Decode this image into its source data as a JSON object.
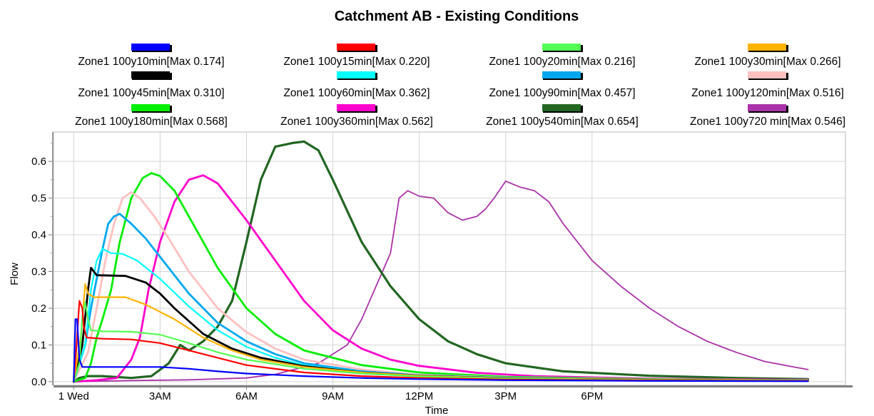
{
  "chart_data": {
    "type": "line",
    "title": "Catchment AB - Existing Conditions",
    "xlabel": "Time",
    "ylabel": "Flow",
    "xlim": [
      -0.7,
      26.8
    ],
    "ylim": [
      -0.01,
      0.68
    ],
    "grid": true,
    "legend_position": "top",
    "x_unit": "hours after 1 Wed 00:00",
    "x_ticks": [
      {
        "value": 0,
        "label": "1 Wed"
      },
      {
        "value": 3,
        "label": "3AM"
      },
      {
        "value": 6,
        "label": "6AM"
      },
      {
        "value": 9,
        "label": "9AM"
      },
      {
        "value": 12,
        "label": "12PM"
      },
      {
        "value": 15,
        "label": "3PM"
      },
      {
        "value": 18,
        "label": "6PM"
      }
    ],
    "y_ticks": [
      {
        "value": 0.0,
        "label": "0.0"
      },
      {
        "value": 0.1,
        "label": "0.1"
      },
      {
        "value": 0.2,
        "label": "0.2"
      },
      {
        "value": 0.3,
        "label": "0.3"
      },
      {
        "value": 0.4,
        "label": "0.4"
      },
      {
        "value": 0.5,
        "label": "0.5"
      },
      {
        "value": 0.6,
        "label": "0.6"
      }
    ],
    "series": [
      {
        "name": "Zone1 100y10min[Max 0.174]",
        "color": "#0000ff",
        "width": 2.2,
        "points": [
          [
            0,
            0
          ],
          [
            0.06,
            0.17
          ],
          [
            0.12,
            0.17
          ],
          [
            0.2,
            0.06
          ],
          [
            0.3,
            0.04
          ],
          [
            0.6,
            0.04
          ],
          [
            1,
            0.04
          ],
          [
            3,
            0.04
          ],
          [
            4,
            0.035
          ],
          [
            5,
            0.028
          ],
          [
            6,
            0.022
          ],
          [
            8,
            0.015
          ],
          [
            10,
            0.01
          ],
          [
            12,
            0.007
          ],
          [
            15,
            0.004
          ],
          [
            18,
            0.003
          ],
          [
            20,
            0.002
          ],
          [
            25.5,
            0.001
          ]
        ]
      },
      {
        "name": "Zone1 100y15min[Max 0.220]",
        "color": "#ff0000",
        "width": 2.2,
        "points": [
          [
            0,
            0
          ],
          [
            0.1,
            0.1
          ],
          [
            0.2,
            0.22
          ],
          [
            0.3,
            0.2
          ],
          [
            0.35,
            0.15
          ],
          [
            0.45,
            0.12
          ],
          [
            1,
            0.117
          ],
          [
            2,
            0.115
          ],
          [
            3,
            0.105
          ],
          [
            4,
            0.085
          ],
          [
            5,
            0.065
          ],
          [
            6,
            0.045
          ],
          [
            8,
            0.025
          ],
          [
            10,
            0.015
          ],
          [
            12,
            0.01
          ],
          [
            15,
            0.006
          ],
          [
            20,
            0.003
          ],
          [
            25.5,
            0.002
          ]
        ]
      },
      {
        "name": "Zone1 100y20min[Max 0.216]",
        "color": "#55ff55",
        "width": 2.2,
        "points": [
          [
            0,
            0
          ],
          [
            0.2,
            0.05
          ],
          [
            0.3,
            0.18
          ],
          [
            0.4,
            0.216
          ],
          [
            0.5,
            0.17
          ],
          [
            0.6,
            0.14
          ],
          [
            1,
            0.137
          ],
          [
            2,
            0.136
          ],
          [
            3,
            0.128
          ],
          [
            4,
            0.105
          ],
          [
            5,
            0.08
          ],
          [
            6,
            0.06
          ],
          [
            8,
            0.035
          ],
          [
            10,
            0.022
          ],
          [
            12,
            0.014
          ],
          [
            15,
            0.008
          ],
          [
            20,
            0.004
          ],
          [
            25.5,
            0.003
          ]
        ]
      },
      {
        "name": "Zone1 100y30min[Max 0.266]",
        "color": "#ffb300",
        "width": 2.2,
        "points": [
          [
            0,
            0
          ],
          [
            0.25,
            0.12
          ],
          [
            0.4,
            0.266
          ],
          [
            0.5,
            0.24
          ],
          [
            0.7,
            0.23
          ],
          [
            1,
            0.23
          ],
          [
            1.8,
            0.23
          ],
          [
            2.5,
            0.21
          ],
          [
            3.5,
            0.17
          ],
          [
            4.5,
            0.12
          ],
          [
            5.5,
            0.085
          ],
          [
            6.5,
            0.06
          ],
          [
            8,
            0.04
          ],
          [
            10,
            0.025
          ],
          [
            12,
            0.016
          ],
          [
            15,
            0.009
          ],
          [
            20,
            0.005
          ],
          [
            25.5,
            0.003
          ]
        ]
      },
      {
        "name": "Zone1 100y45min[Max 0.310]",
        "color": "#000000",
        "width": 2.8,
        "points": [
          [
            0,
            0
          ],
          [
            0.3,
            0.1
          ],
          [
            0.5,
            0.25
          ],
          [
            0.6,
            0.31
          ],
          [
            0.7,
            0.3
          ],
          [
            0.8,
            0.29
          ],
          [
            1.8,
            0.288
          ],
          [
            2.5,
            0.27
          ],
          [
            3,
            0.24
          ],
          [
            3.5,
            0.2
          ],
          [
            4,
            0.165
          ],
          [
            4.5,
            0.13
          ],
          [
            5.5,
            0.09
          ],
          [
            6.5,
            0.065
          ],
          [
            8,
            0.042
          ],
          [
            10,
            0.025
          ],
          [
            12,
            0.016
          ],
          [
            15,
            0.009
          ],
          [
            20,
            0.005
          ],
          [
            25.5,
            0.003
          ]
        ]
      },
      {
        "name": "Zone1 100y60min[Max 0.362]",
        "color": "#00ffff",
        "width": 2.2,
        "points": [
          [
            0,
            0
          ],
          [
            0.4,
            0.1
          ],
          [
            0.6,
            0.25
          ],
          [
            0.8,
            0.33
          ],
          [
            1,
            0.362
          ],
          [
            1.3,
            0.35
          ],
          [
            1.7,
            0.348
          ],
          [
            2.2,
            0.33
          ],
          [
            3,
            0.28
          ],
          [
            4,
            0.205
          ],
          [
            5,
            0.14
          ],
          [
            6,
            0.095
          ],
          [
            7,
            0.065
          ],
          [
            8,
            0.045
          ],
          [
            10,
            0.026
          ],
          [
            12,
            0.016
          ],
          [
            15,
            0.009
          ],
          [
            20,
            0.005
          ],
          [
            25.5,
            0.003
          ]
        ]
      },
      {
        "name": "Zone1 100y90min[Max 0.457]",
        "color": "#00a8ee",
        "width": 2.8,
        "points": [
          [
            0,
            0
          ],
          [
            0.4,
            0.1
          ],
          [
            0.6,
            0.2
          ],
          [
            0.8,
            0.28
          ],
          [
            1,
            0.36
          ],
          [
            1.2,
            0.43
          ],
          [
            1.4,
            0.45
          ],
          [
            1.6,
            0.457
          ],
          [
            2,
            0.43
          ],
          [
            2.5,
            0.39
          ],
          [
            3,
            0.34
          ],
          [
            3.5,
            0.29
          ],
          [
            4,
            0.24
          ],
          [
            5,
            0.16
          ],
          [
            6,
            0.11
          ],
          [
            7,
            0.075
          ],
          [
            8,
            0.05
          ],
          [
            10,
            0.028
          ],
          [
            12,
            0.017
          ],
          [
            15,
            0.01
          ],
          [
            20,
            0.005
          ],
          [
            25.5,
            0.003
          ]
        ]
      },
      {
        "name": "Zone1 100y120min[Max 0.516]",
        "color": "#ffc0c0",
        "width": 2.8,
        "points": [
          [
            0,
            0
          ],
          [
            0.5,
            0.08
          ],
          [
            0.8,
            0.2
          ],
          [
            1.1,
            0.33
          ],
          [
            1.4,
            0.43
          ],
          [
            1.7,
            0.5
          ],
          [
            2,
            0.516
          ],
          [
            2.3,
            0.5
          ],
          [
            2.8,
            0.45
          ],
          [
            3.3,
            0.39
          ],
          [
            4,
            0.3
          ],
          [
            5,
            0.2
          ],
          [
            6,
            0.135
          ],
          [
            7,
            0.09
          ],
          [
            8,
            0.06
          ],
          [
            10,
            0.033
          ],
          [
            12,
            0.019
          ],
          [
            15,
            0.011
          ],
          [
            20,
            0.006
          ],
          [
            25.5,
            0.004
          ]
        ]
      },
      {
        "name": "Zone1 100y180min[Max 0.568]",
        "color": "#00ee00",
        "width": 2.8,
        "points": [
          [
            0,
            0
          ],
          [
            0.4,
            0.01
          ],
          [
            0.6,
            0.05
          ],
          [
            0.8,
            0.12
          ],
          [
            1,
            0.17
          ],
          [
            1.3,
            0.25
          ],
          [
            1.6,
            0.38
          ],
          [
            2,
            0.5
          ],
          [
            2.4,
            0.555
          ],
          [
            2.7,
            0.568
          ],
          [
            3,
            0.56
          ],
          [
            3.5,
            0.52
          ],
          [
            4,
            0.45
          ],
          [
            4.5,
            0.38
          ],
          [
            5,
            0.31
          ],
          [
            6,
            0.2
          ],
          [
            7,
            0.13
          ],
          [
            8,
            0.085
          ],
          [
            10,
            0.045
          ],
          [
            12,
            0.025
          ],
          [
            15,
            0.013
          ],
          [
            20,
            0.007
          ],
          [
            25.5,
            0.004
          ]
        ]
      },
      {
        "name": "Zone1 100y360min[Max 0.562]",
        "color": "#ff00cc",
        "width": 2.8,
        "points": [
          [
            0,
            0
          ],
          [
            0.8,
            0.004
          ],
          [
            1.5,
            0.01
          ],
          [
            2,
            0.06
          ],
          [
            2.3,
            0.12
          ],
          [
            2.6,
            0.25
          ],
          [
            3,
            0.38
          ],
          [
            3.5,
            0.49
          ],
          [
            4,
            0.55
          ],
          [
            4.5,
            0.562
          ],
          [
            5,
            0.54
          ],
          [
            5.5,
            0.49
          ],
          [
            6,
            0.44
          ],
          [
            7,
            0.33
          ],
          [
            8,
            0.22
          ],
          [
            9,
            0.14
          ],
          [
            10,
            0.09
          ],
          [
            11,
            0.06
          ],
          [
            12,
            0.043
          ],
          [
            14,
            0.024
          ],
          [
            16,
            0.015
          ],
          [
            20,
            0.008
          ],
          [
            25.5,
            0.005
          ]
        ]
      },
      {
        "name": "Zone1 100y540min[Max 0.654]",
        "color": "#226622",
        "width": 3.2,
        "points": [
          [
            0,
            0
          ],
          [
            0.2,
            0.01
          ],
          [
            0.5,
            0.015
          ],
          [
            1,
            0.015
          ],
          [
            2,
            0.01
          ],
          [
            2.7,
            0.015
          ],
          [
            3.3,
            0.05
          ],
          [
            3.7,
            0.1
          ],
          [
            4,
            0.085
          ],
          [
            4.5,
            0.11
          ],
          [
            5,
            0.15
          ],
          [
            5.5,
            0.22
          ],
          [
            6,
            0.38
          ],
          [
            6.5,
            0.55
          ],
          [
            7,
            0.64
          ],
          [
            7.6,
            0.65
          ],
          [
            8,
            0.654
          ],
          [
            8.5,
            0.63
          ],
          [
            9,
            0.55
          ],
          [
            10,
            0.38
          ],
          [
            11,
            0.26
          ],
          [
            12,
            0.17
          ],
          [
            13,
            0.11
          ],
          [
            14,
            0.075
          ],
          [
            15,
            0.05
          ],
          [
            17,
            0.028
          ],
          [
            20,
            0.016
          ],
          [
            23,
            0.01
          ],
          [
            25.5,
            0.007
          ]
        ]
      },
      {
        "name": "Zone1 100y720 min[Max 0.546]",
        "color": "#aa33aa",
        "width": 1.8,
        "points": [
          [
            0,
            0
          ],
          [
            2,
            0.003
          ],
          [
            4,
            0.005
          ],
          [
            6,
            0.01
          ],
          [
            7,
            0.02
          ],
          [
            8.5,
            0.05
          ],
          [
            9.5,
            0.1
          ],
          [
            10,
            0.17
          ],
          [
            10.5,
            0.26
          ],
          [
            11,
            0.35
          ],
          [
            11.3,
            0.5
          ],
          [
            11.6,
            0.52
          ],
          [
            12,
            0.505
          ],
          [
            12.5,
            0.5
          ],
          [
            13,
            0.46
          ],
          [
            13.5,
            0.44
          ],
          [
            14,
            0.45
          ],
          [
            14.3,
            0.47
          ],
          [
            14.6,
            0.5
          ],
          [
            15,
            0.546
          ],
          [
            15.5,
            0.53
          ],
          [
            16,
            0.52
          ],
          [
            16.5,
            0.49
          ],
          [
            17,
            0.43
          ],
          [
            17.5,
            0.38
          ],
          [
            18,
            0.33
          ],
          [
            19,
            0.26
          ],
          [
            20,
            0.2
          ],
          [
            21,
            0.15
          ],
          [
            22,
            0.11
          ],
          [
            23,
            0.08
          ],
          [
            24,
            0.055
          ],
          [
            25,
            0.04
          ],
          [
            25.5,
            0.033
          ]
        ]
      }
    ]
  }
}
